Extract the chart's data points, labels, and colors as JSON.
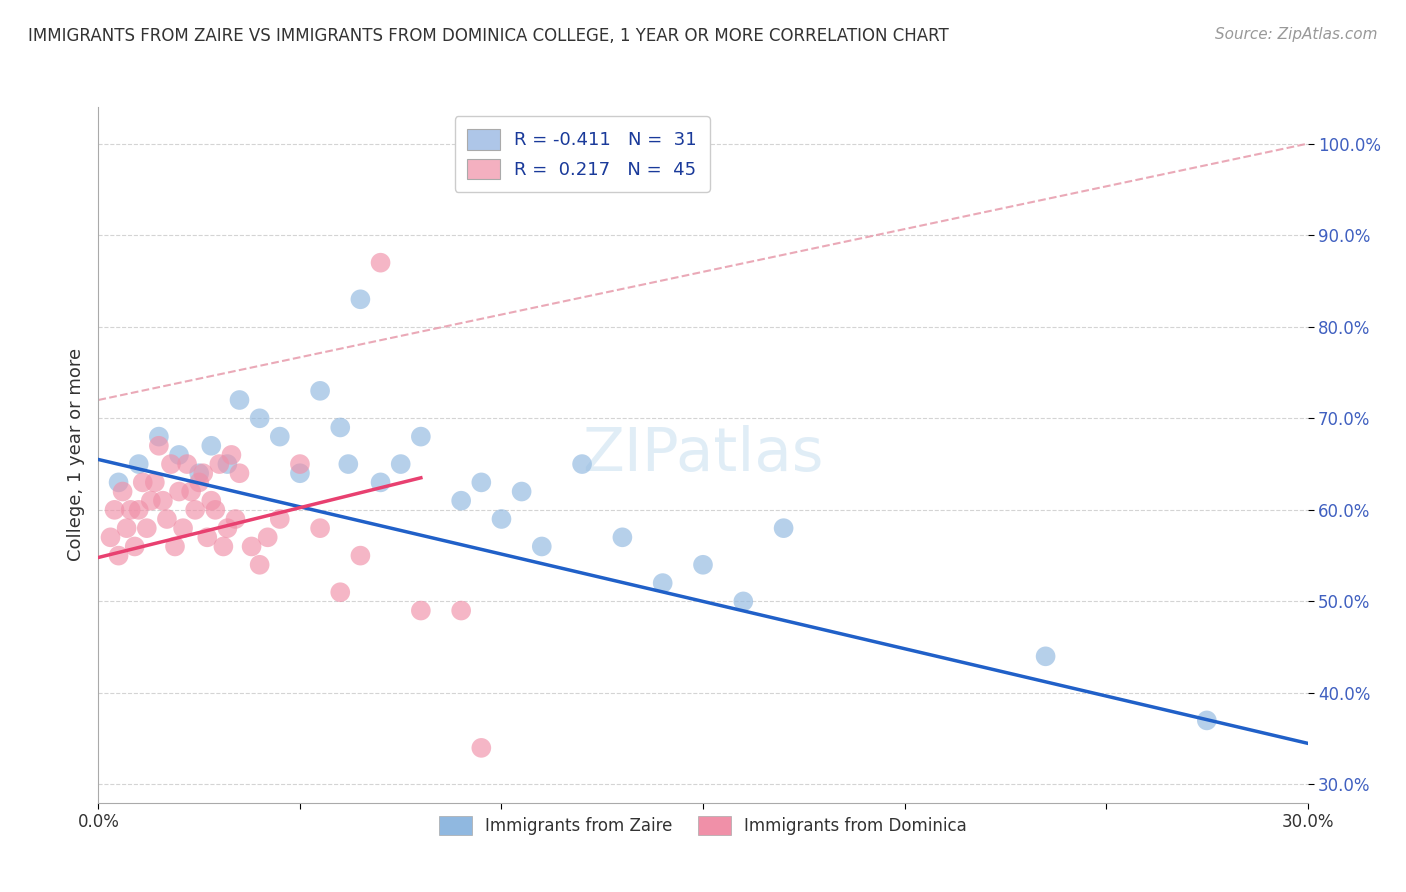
{
  "title": "IMMIGRANTS FROM ZAIRE VS IMMIGRANTS FROM DOMINICA COLLEGE, 1 YEAR OR MORE CORRELATION CHART",
  "source": "Source: ZipAtlas.com",
  "ylabel": "College, 1 year or more",
  "xlim": [
    0.0,
    0.3
  ],
  "ylim": [
    0.28,
    1.04
  ],
  "xticks": [
    0.0,
    0.05,
    0.1,
    0.15,
    0.2,
    0.25,
    0.3
  ],
  "yticks": [
    0.3,
    0.4,
    0.5,
    0.6,
    0.7,
    0.8,
    0.9,
    1.0
  ],
  "legend_entries": [
    {
      "label": "R = -0.411   N =  31",
      "facecolor": "#aec6e8"
    },
    {
      "label": "R =  0.217   N =  45",
      "facecolor": "#f4b0c0"
    }
  ],
  "zaire_R": -0.411,
  "zaire_N": 31,
  "dominica_R": 0.217,
  "dominica_N": 45,
  "zaire_color": "#90b8e0",
  "dominica_color": "#f090a8",
  "zaire_line_color": "#2060c8",
  "dominica_line_color": "#e84070",
  "ref_line_color": "#e8a0b0",
  "grid_color": "#d0d0d0",
  "background_color": "#ffffff",
  "ytick_color": "#4060c0",
  "zaire_line_x0": 0.0,
  "zaire_line_y0": 0.655,
  "zaire_line_x1": 0.3,
  "zaire_line_y1": 0.345,
  "dominica_line_x0": 0.0,
  "dominica_line_y0": 0.548,
  "dominica_line_x1": 0.08,
  "dominica_line_y1": 0.635,
  "ref_line_x0": 0.0,
  "ref_line_y0": 0.72,
  "ref_line_x1": 0.3,
  "ref_line_y1": 1.0,
  "zaire_x": [
    0.005,
    0.01,
    0.015,
    0.02,
    0.025,
    0.028,
    0.032,
    0.035,
    0.04,
    0.045,
    0.05,
    0.055,
    0.06,
    0.062,
    0.065,
    0.07,
    0.075,
    0.08,
    0.09,
    0.095,
    0.1,
    0.105,
    0.11,
    0.12,
    0.13,
    0.14,
    0.15,
    0.16,
    0.17,
    0.235,
    0.275
  ],
  "zaire_y": [
    0.63,
    0.65,
    0.68,
    0.66,
    0.64,
    0.67,
    0.65,
    0.72,
    0.7,
    0.68,
    0.64,
    0.73,
    0.69,
    0.65,
    0.83,
    0.63,
    0.65,
    0.68,
    0.61,
    0.63,
    0.59,
    0.62,
    0.56,
    0.65,
    0.57,
    0.52,
    0.54,
    0.5,
    0.58,
    0.44,
    0.37
  ],
  "dominica_x": [
    0.003,
    0.004,
    0.005,
    0.006,
    0.007,
    0.008,
    0.009,
    0.01,
    0.011,
    0.012,
    0.013,
    0.014,
    0.015,
    0.016,
    0.017,
    0.018,
    0.019,
    0.02,
    0.021,
    0.022,
    0.023,
    0.024,
    0.025,
    0.026,
    0.027,
    0.028,
    0.029,
    0.03,
    0.031,
    0.032,
    0.033,
    0.034,
    0.035,
    0.038,
    0.04,
    0.042,
    0.045,
    0.05,
    0.055,
    0.06,
    0.065,
    0.07,
    0.08,
    0.09,
    0.095
  ],
  "dominica_y": [
    0.57,
    0.6,
    0.55,
    0.62,
    0.58,
    0.6,
    0.56,
    0.6,
    0.63,
    0.58,
    0.61,
    0.63,
    0.67,
    0.61,
    0.59,
    0.65,
    0.56,
    0.62,
    0.58,
    0.65,
    0.62,
    0.6,
    0.63,
    0.64,
    0.57,
    0.61,
    0.6,
    0.65,
    0.56,
    0.58,
    0.66,
    0.59,
    0.64,
    0.56,
    0.54,
    0.57,
    0.59,
    0.65,
    0.58,
    0.51,
    0.55,
    0.87,
    0.49,
    0.49,
    0.34
  ]
}
